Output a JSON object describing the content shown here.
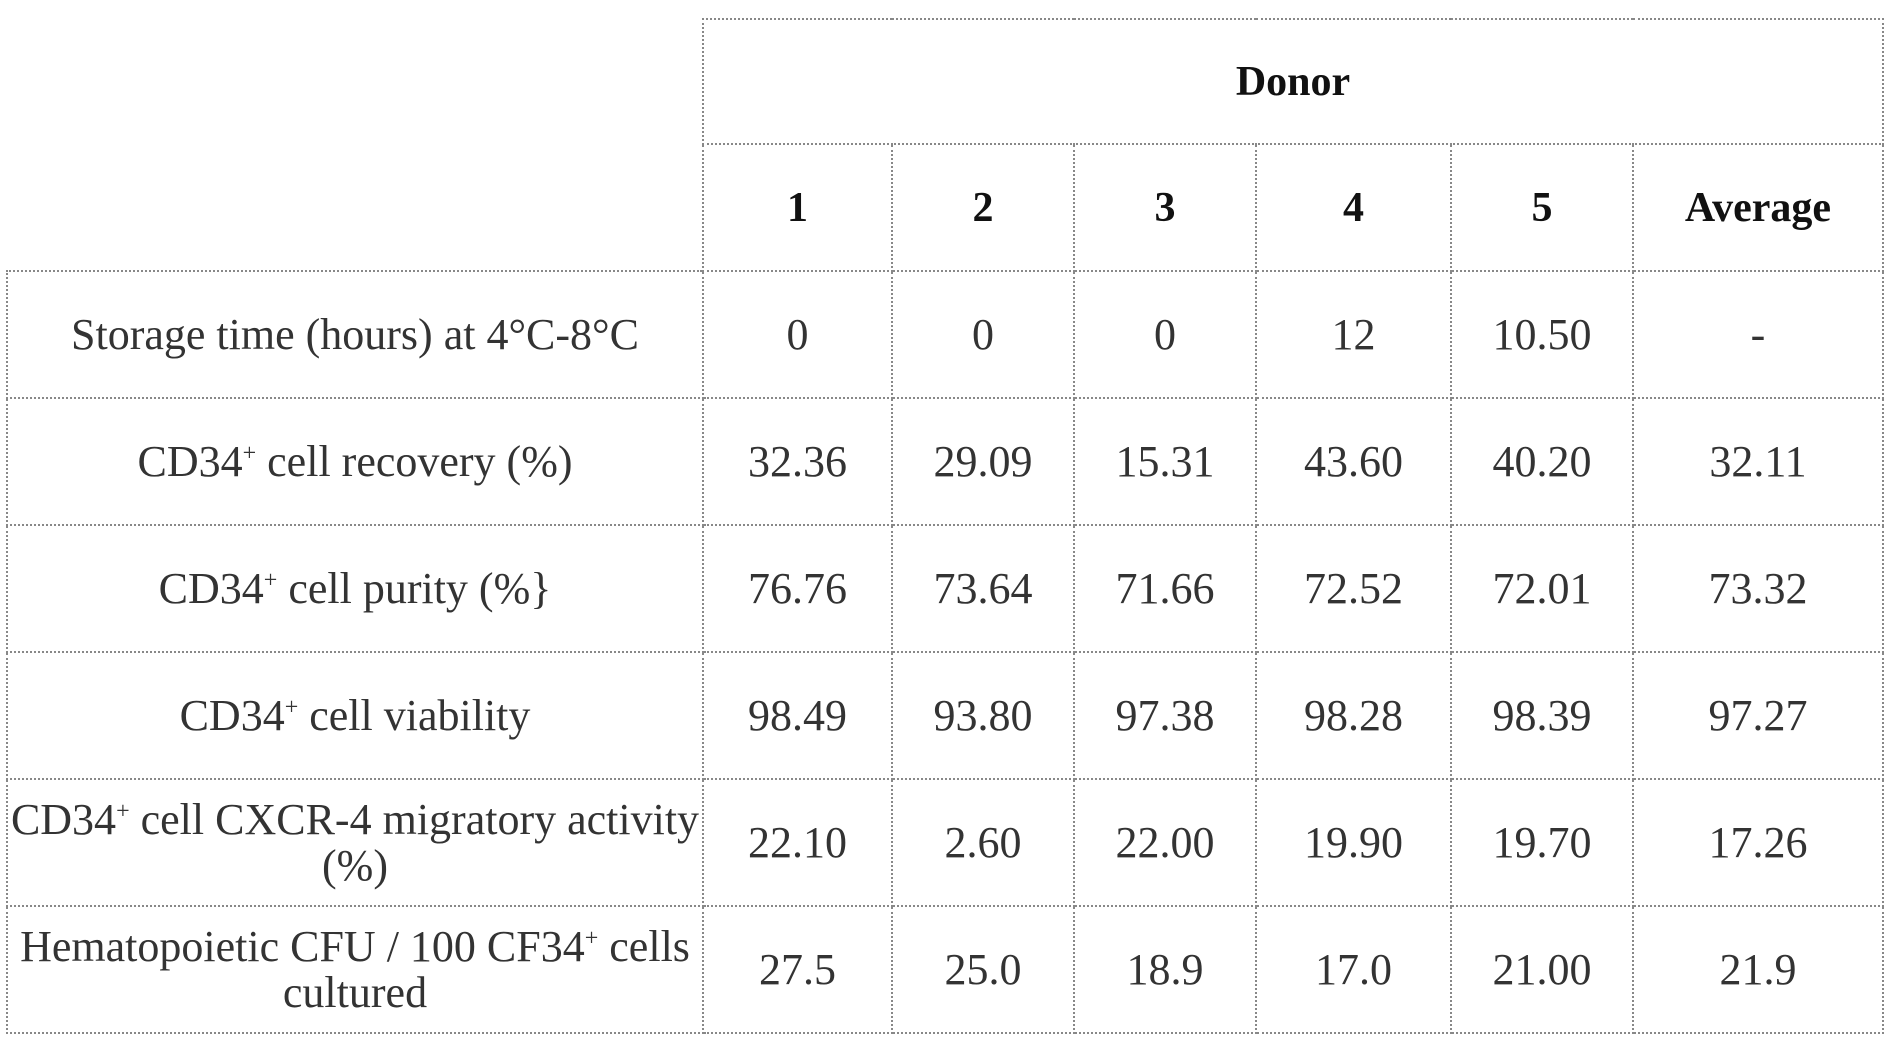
{
  "table": {
    "group_header": "Donor",
    "columns": [
      "1",
      "2",
      "3",
      "4",
      "5",
      "Average"
    ],
    "rows": [
      {
        "label_pre": "Storage time (hours) at 4°C-8°C",
        "label_sup": "",
        "label_post": "",
        "values": [
          "0",
          "0",
          "0",
          "12",
          "10.50",
          "-"
        ]
      },
      {
        "label_pre": "CD34",
        "label_sup": "+",
        "label_post": " cell recovery (%)",
        "values": [
          "32.36",
          "29.09",
          "15.31",
          "43.60",
          "40.20",
          "32.11"
        ]
      },
      {
        "label_pre": "CD34",
        "label_sup": "+",
        "label_post": " cell purity (%}",
        "values": [
          "76.76",
          "73.64",
          "71.66",
          "72.52",
          "72.01",
          "73.32"
        ]
      },
      {
        "label_pre": "CD34",
        "label_sup": "+",
        "label_post": " cell viability",
        "values": [
          "98.49",
          "93.80",
          "97.38",
          "98.28",
          "98.39",
          "97.27"
        ]
      },
      {
        "label_pre": "CD34",
        "label_sup": "+",
        "label_post": " cell CXCR-4 migratory activity (%)",
        "values": [
          "22.10",
          "2.60",
          "22.00",
          "19.90",
          "19.70",
          "17.26"
        ]
      },
      {
        "label_pre": "Hematopoietic CFU / 100 CF34",
        "label_sup": "+",
        "label_post": " cells cultured",
        "values": [
          "27.5",
          "25.0",
          "18.9",
          "17.0",
          "21.00",
          "21.9"
        ]
      }
    ]
  }
}
